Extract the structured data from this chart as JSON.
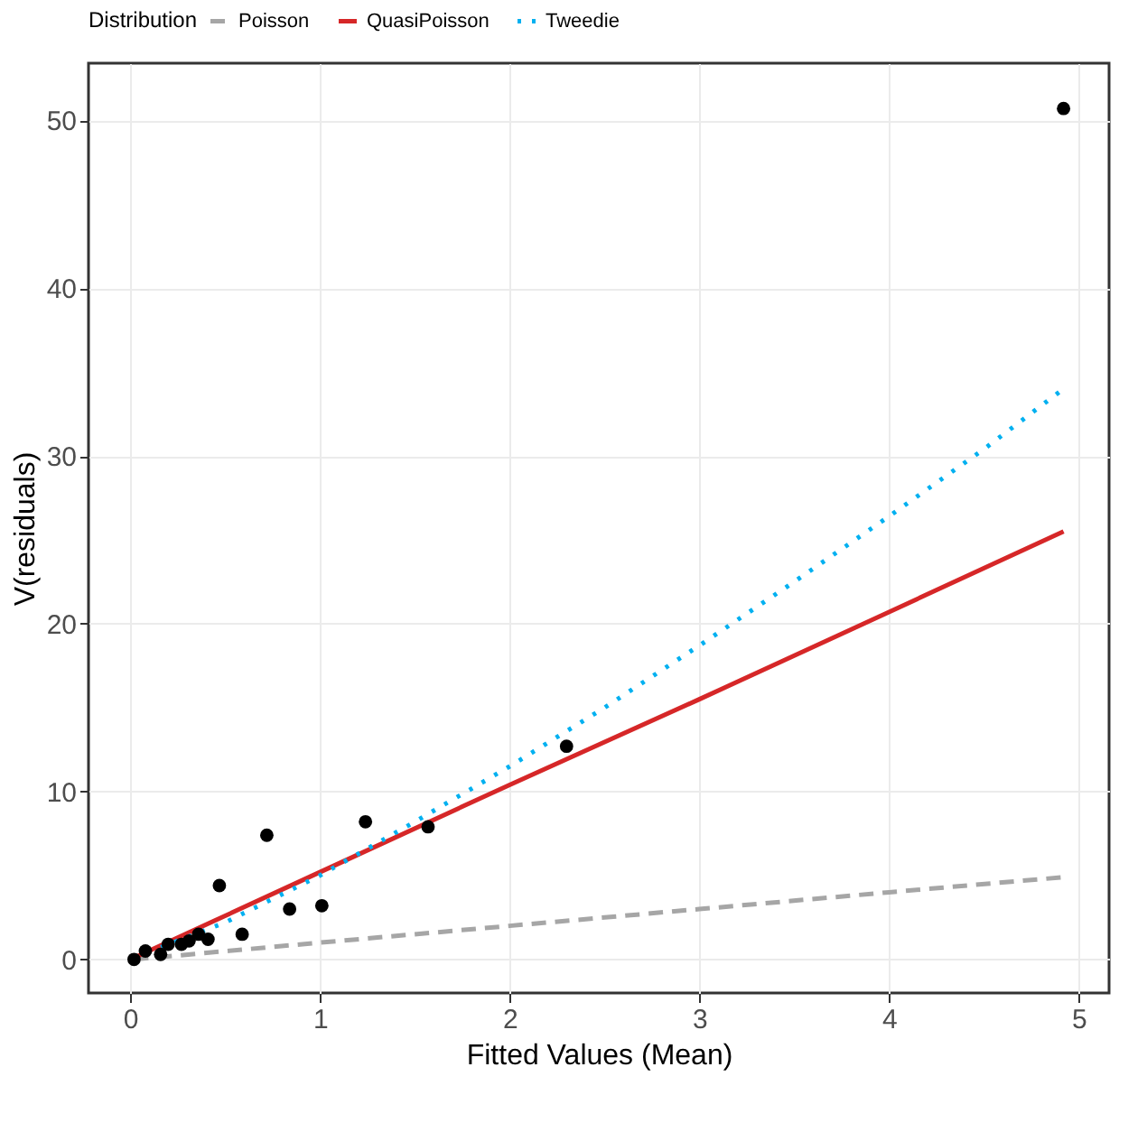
{
  "chart_data": {
    "type": "scatter",
    "xlabel": "Fitted Values (Mean)",
    "ylabel": "V(residuals)",
    "legend_title": "Distribution",
    "legend": "top",
    "xlim": [
      -0.22,
      5.16
    ],
    "ylim": [
      -2.0,
      53.4
    ],
    "xticks": [
      0,
      1,
      2,
      3,
      4,
      5
    ],
    "yticks": [
      0,
      10,
      20,
      30,
      40,
      50
    ],
    "grid": true,
    "marker": "circle",
    "series": [
      {
        "color": "#000000",
        "x": [
          0.02,
          0.08,
          0.16,
          0.2,
          0.27,
          0.31,
          0.36,
          0.41,
          0.47,
          0.59,
          0.72,
          0.84,
          1.01,
          1.24,
          1.57,
          2.3,
          4.92
        ],
        "values": [
          0.0,
          0.5,
          0.3,
          0.9,
          0.9,
          1.1,
          1.5,
          1.2,
          4.4,
          1.5,
          7.4,
          3.0,
          3.2,
          8.2,
          7.9,
          12.7,
          50.7
        ]
      },
      {
        "type": "line",
        "name": "Poisson",
        "color": "#a6a6a6",
        "line_style": "dashed",
        "marker": "none",
        "x": [
          0.02,
          1,
          2,
          3,
          4,
          4.92
        ],
        "values": [
          0.0,
          1.0,
          2.0,
          3.0,
          4.0,
          4.9
        ]
      },
      {
        "type": "line",
        "name": "QuasiPoisson",
        "color": "#d62728",
        "line_style": "solid",
        "marker": "none",
        "x": [
          0.02,
          1,
          2,
          3,
          4,
          4.92
        ],
        "values": [
          0.1,
          5.2,
          10.4,
          15.5,
          20.7,
          25.5
        ]
      },
      {
        "type": "line",
        "name": "Tweedie",
        "color": "#00b0f0",
        "line_style": "dotted",
        "marker": "none",
        "x": [
          0.02,
          0.5,
          1,
          1.5,
          2,
          2.5,
          3,
          3.5,
          4,
          4.5,
          4.92
        ],
        "values": [
          0.1,
          2.2,
          5.0,
          8.2,
          11.5,
          15.0,
          18.7,
          22.5,
          26.4,
          30.4,
          34.0
        ]
      }
    ]
  }
}
